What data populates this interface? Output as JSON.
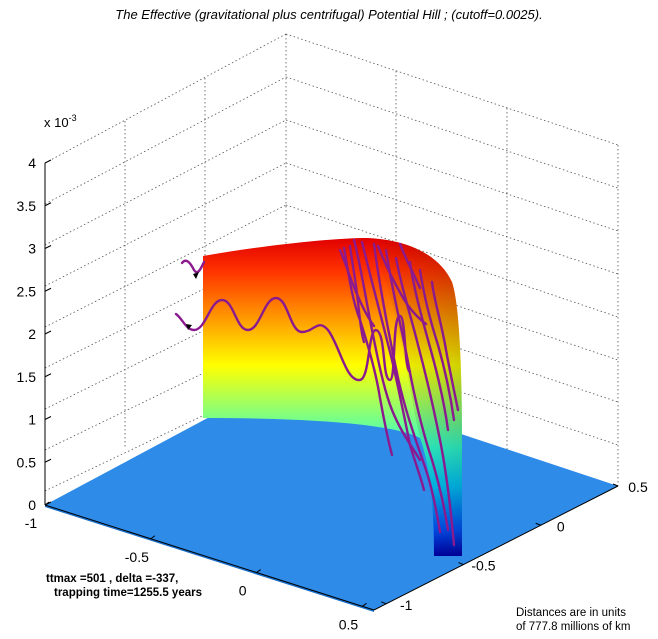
{
  "chart_data": {
    "type": "surface",
    "title": "The Effective (gravitational plus centrifugal) Potential Hill ; (cutoff=0.0025).",
    "z_exponent_base": "x 10",
    "z_exponent_power": "-3",
    "z_ticks": [
      "0",
      "0.5",
      "1",
      "1.5",
      "2",
      "2.5",
      "3",
      "3.5",
      "4"
    ],
    "x_ticks": [
      "-1",
      "-0.5",
      "0",
      "0.5"
    ],
    "y_ticks": [
      "0.5",
      "0",
      "-0.5",
      "-1"
    ],
    "xlim": [
      -1,
      0.5
    ],
    "ylim": [
      -1,
      0.5
    ],
    "zlim": [
      0,
      0.004
    ],
    "cutoff": 0.0025,
    "grid": true,
    "surface_colormap": "jet",
    "floor_color": "#2e8be8",
    "trajectory_color": "#8b1a8f",
    "annotation_line1": "ttmax =501 ,    delta =-337,",
    "annotation_line2": "trapping time=1255.5 years",
    "units_line1": "Distances are in units",
    "units_line2": "of 777.8 millions of km"
  }
}
